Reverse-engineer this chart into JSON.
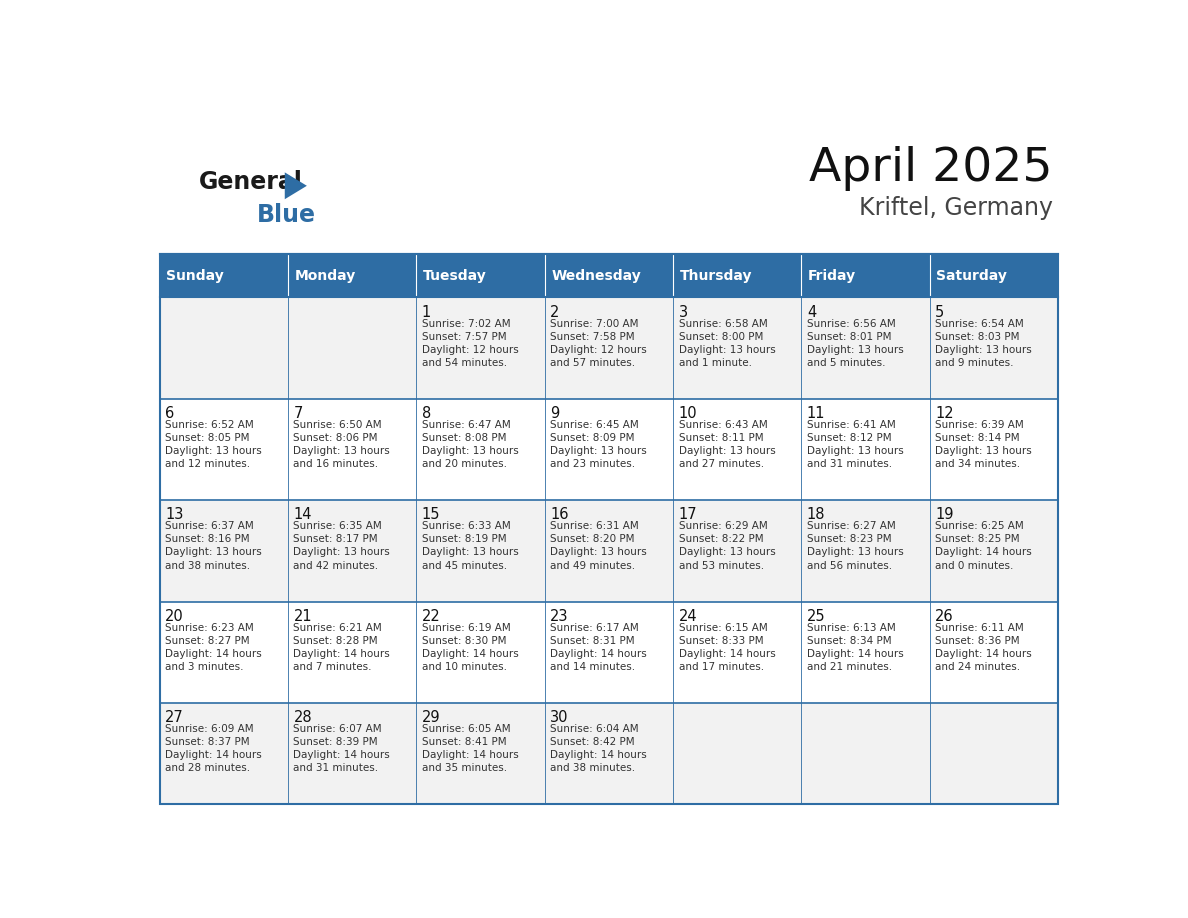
{
  "title": "April 2025",
  "subtitle": "Kriftel, Germany",
  "header_bg": "#2E6DA4",
  "header_text_color": "#FFFFFF",
  "cell_bg_even": "#F2F2F2",
  "cell_bg_odd": "#FFFFFF",
  "border_color": "#2E6DA4",
  "day_names": [
    "Sunday",
    "Monday",
    "Tuesday",
    "Wednesday",
    "Thursday",
    "Friday",
    "Saturday"
  ],
  "text_color": "#222222",
  "day_num_color": "#111111",
  "days": [
    {
      "day": 1,
      "col": 2,
      "row": 0,
      "sunrise_str": "Sunrise: 7:02 AM",
      "sunset_str": "Sunset: 7:57 PM",
      "daylight_str": "Daylight: 12 hours\nand 54 minutes."
    },
    {
      "day": 2,
      "col": 3,
      "row": 0,
      "sunrise_str": "Sunrise: 7:00 AM",
      "sunset_str": "Sunset: 7:58 PM",
      "daylight_str": "Daylight: 12 hours\nand 57 minutes."
    },
    {
      "day": 3,
      "col": 4,
      "row": 0,
      "sunrise_str": "Sunrise: 6:58 AM",
      "sunset_str": "Sunset: 8:00 PM",
      "daylight_str": "Daylight: 13 hours\nand 1 minute."
    },
    {
      "day": 4,
      "col": 5,
      "row": 0,
      "sunrise_str": "Sunrise: 6:56 AM",
      "sunset_str": "Sunset: 8:01 PM",
      "daylight_str": "Daylight: 13 hours\nand 5 minutes."
    },
    {
      "day": 5,
      "col": 6,
      "row": 0,
      "sunrise_str": "Sunrise: 6:54 AM",
      "sunset_str": "Sunset: 8:03 PM",
      "daylight_str": "Daylight: 13 hours\nand 9 minutes."
    },
    {
      "day": 6,
      "col": 0,
      "row": 1,
      "sunrise_str": "Sunrise: 6:52 AM",
      "sunset_str": "Sunset: 8:05 PM",
      "daylight_str": "Daylight: 13 hours\nand 12 minutes."
    },
    {
      "day": 7,
      "col": 1,
      "row": 1,
      "sunrise_str": "Sunrise: 6:50 AM",
      "sunset_str": "Sunset: 8:06 PM",
      "daylight_str": "Daylight: 13 hours\nand 16 minutes."
    },
    {
      "day": 8,
      "col": 2,
      "row": 1,
      "sunrise_str": "Sunrise: 6:47 AM",
      "sunset_str": "Sunset: 8:08 PM",
      "daylight_str": "Daylight: 13 hours\nand 20 minutes."
    },
    {
      "day": 9,
      "col": 3,
      "row": 1,
      "sunrise_str": "Sunrise: 6:45 AM",
      "sunset_str": "Sunset: 8:09 PM",
      "daylight_str": "Daylight: 13 hours\nand 23 minutes."
    },
    {
      "day": 10,
      "col": 4,
      "row": 1,
      "sunrise_str": "Sunrise: 6:43 AM",
      "sunset_str": "Sunset: 8:11 PM",
      "daylight_str": "Daylight: 13 hours\nand 27 minutes."
    },
    {
      "day": 11,
      "col": 5,
      "row": 1,
      "sunrise_str": "Sunrise: 6:41 AM",
      "sunset_str": "Sunset: 8:12 PM",
      "daylight_str": "Daylight: 13 hours\nand 31 minutes."
    },
    {
      "day": 12,
      "col": 6,
      "row": 1,
      "sunrise_str": "Sunrise: 6:39 AM",
      "sunset_str": "Sunset: 8:14 PM",
      "daylight_str": "Daylight: 13 hours\nand 34 minutes."
    },
    {
      "day": 13,
      "col": 0,
      "row": 2,
      "sunrise_str": "Sunrise: 6:37 AM",
      "sunset_str": "Sunset: 8:16 PM",
      "daylight_str": "Daylight: 13 hours\nand 38 minutes."
    },
    {
      "day": 14,
      "col": 1,
      "row": 2,
      "sunrise_str": "Sunrise: 6:35 AM",
      "sunset_str": "Sunset: 8:17 PM",
      "daylight_str": "Daylight: 13 hours\nand 42 minutes."
    },
    {
      "day": 15,
      "col": 2,
      "row": 2,
      "sunrise_str": "Sunrise: 6:33 AM",
      "sunset_str": "Sunset: 8:19 PM",
      "daylight_str": "Daylight: 13 hours\nand 45 minutes."
    },
    {
      "day": 16,
      "col": 3,
      "row": 2,
      "sunrise_str": "Sunrise: 6:31 AM",
      "sunset_str": "Sunset: 8:20 PM",
      "daylight_str": "Daylight: 13 hours\nand 49 minutes."
    },
    {
      "day": 17,
      "col": 4,
      "row": 2,
      "sunrise_str": "Sunrise: 6:29 AM",
      "sunset_str": "Sunset: 8:22 PM",
      "daylight_str": "Daylight: 13 hours\nand 53 minutes."
    },
    {
      "day": 18,
      "col": 5,
      "row": 2,
      "sunrise_str": "Sunrise: 6:27 AM",
      "sunset_str": "Sunset: 8:23 PM",
      "daylight_str": "Daylight: 13 hours\nand 56 minutes."
    },
    {
      "day": 19,
      "col": 6,
      "row": 2,
      "sunrise_str": "Sunrise: 6:25 AM",
      "sunset_str": "Sunset: 8:25 PM",
      "daylight_str": "Daylight: 14 hours\nand 0 minutes."
    },
    {
      "day": 20,
      "col": 0,
      "row": 3,
      "sunrise_str": "Sunrise: 6:23 AM",
      "sunset_str": "Sunset: 8:27 PM",
      "daylight_str": "Daylight: 14 hours\nand 3 minutes."
    },
    {
      "day": 21,
      "col": 1,
      "row": 3,
      "sunrise_str": "Sunrise: 6:21 AM",
      "sunset_str": "Sunset: 8:28 PM",
      "daylight_str": "Daylight: 14 hours\nand 7 minutes."
    },
    {
      "day": 22,
      "col": 2,
      "row": 3,
      "sunrise_str": "Sunrise: 6:19 AM",
      "sunset_str": "Sunset: 8:30 PM",
      "daylight_str": "Daylight: 14 hours\nand 10 minutes."
    },
    {
      "day": 23,
      "col": 3,
      "row": 3,
      "sunrise_str": "Sunrise: 6:17 AM",
      "sunset_str": "Sunset: 8:31 PM",
      "daylight_str": "Daylight: 14 hours\nand 14 minutes."
    },
    {
      "day": 24,
      "col": 4,
      "row": 3,
      "sunrise_str": "Sunrise: 6:15 AM",
      "sunset_str": "Sunset: 8:33 PM",
      "daylight_str": "Daylight: 14 hours\nand 17 minutes."
    },
    {
      "day": 25,
      "col": 5,
      "row": 3,
      "sunrise_str": "Sunrise: 6:13 AM",
      "sunset_str": "Sunset: 8:34 PM",
      "daylight_str": "Daylight: 14 hours\nand 21 minutes."
    },
    {
      "day": 26,
      "col": 6,
      "row": 3,
      "sunrise_str": "Sunrise: 6:11 AM",
      "sunset_str": "Sunset: 8:36 PM",
      "daylight_str": "Daylight: 14 hours\nand 24 minutes."
    },
    {
      "day": 27,
      "col": 0,
      "row": 4,
      "sunrise_str": "Sunrise: 6:09 AM",
      "sunset_str": "Sunset: 8:37 PM",
      "daylight_str": "Daylight: 14 hours\nand 28 minutes."
    },
    {
      "day": 28,
      "col": 1,
      "row": 4,
      "sunrise_str": "Sunrise: 6:07 AM",
      "sunset_str": "Sunset: 8:39 PM",
      "daylight_str": "Daylight: 14 hours\nand 31 minutes."
    },
    {
      "day": 29,
      "col": 2,
      "row": 4,
      "sunrise_str": "Sunrise: 6:05 AM",
      "sunset_str": "Sunset: 8:41 PM",
      "daylight_str": "Daylight: 14 hours\nand 35 minutes."
    },
    {
      "day": 30,
      "col": 3,
      "row": 4,
      "sunrise_str": "Sunrise: 6:04 AM",
      "sunset_str": "Sunset: 8:42 PM",
      "daylight_str": "Daylight: 14 hours\nand 38 minutes."
    }
  ]
}
